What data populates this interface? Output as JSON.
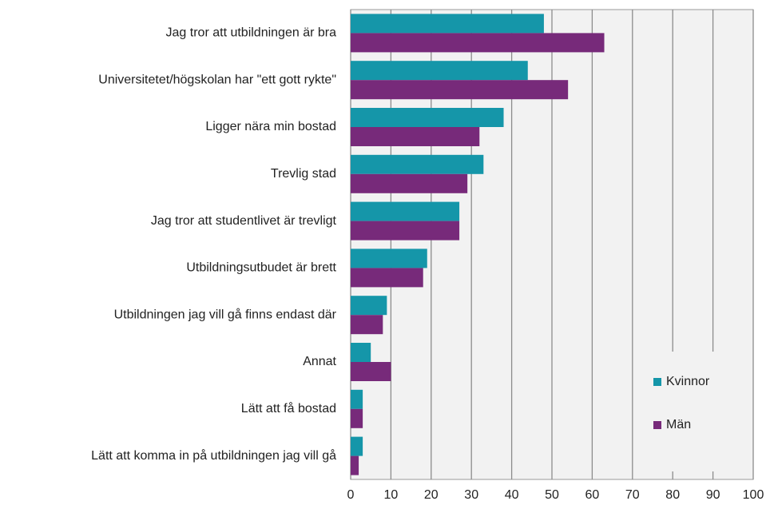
{
  "chart_data": {
    "type": "barh",
    "categories": [
      "Jag tror att utbildningen är bra",
      "Universitetet/högskolan har \"ett gott rykte\"",
      "Ligger nära min bostad",
      "Trevlig stad",
      "Jag tror att studentlivet är trevligt",
      "Utbildningsutbudet är brett",
      "Utbildningen jag vill gå finns endast där",
      "Annat",
      "Lätt att få bostad",
      "Lätt att komma in på utbildningen jag vill gå"
    ],
    "series": [
      {
        "name": "Kvinnor",
        "color": "#1596a9",
        "values": [
          48,
          44,
          38,
          33,
          27,
          19,
          9,
          5,
          3,
          3
        ]
      },
      {
        "name": "Män",
        "color": "#772a7a",
        "values": [
          63,
          54,
          32,
          29,
          27,
          18,
          8,
          10,
          3,
          2
        ]
      }
    ],
    "xlim": [
      0,
      100
    ],
    "xticks": [
      0,
      10,
      20,
      30,
      40,
      50,
      60,
      70,
      80,
      90,
      100
    ],
    "grid": true,
    "legend": "lower right"
  }
}
